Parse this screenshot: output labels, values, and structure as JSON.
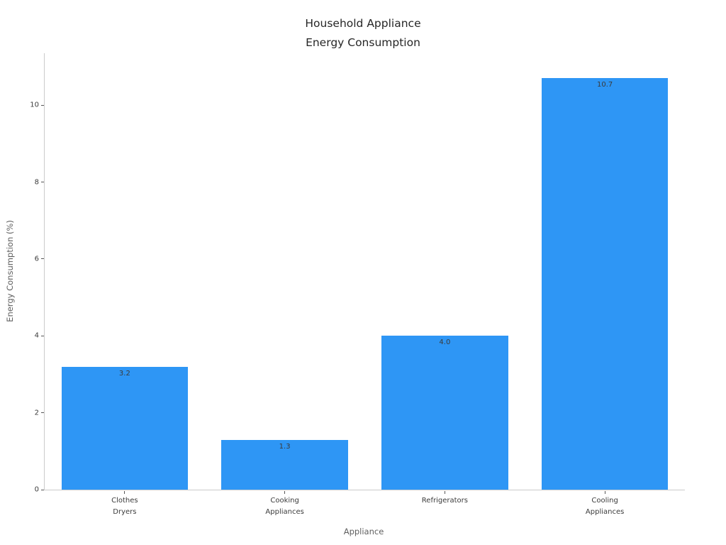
{
  "chart_data": {
    "type": "bar",
    "title": "Household Appliance\nEnergy Consumption",
    "xlabel": "Appliance",
    "ylabel": "Energy Consumption (%)",
    "categories": [
      "Clothes\nDryers",
      "Cooking\nAppliances",
      "Refrigerators",
      "Cooling\nAppliances"
    ],
    "values": [
      3.2,
      1.3,
      4.0,
      10.7
    ],
    "value_labels": [
      "3.2",
      "1.3",
      "4.0",
      "10.7"
    ],
    "yticks": [
      0,
      2,
      4,
      6,
      8,
      10
    ],
    "ylim": [
      0,
      11.35
    ],
    "grid": "off",
    "legend": "none",
    "bar_color": "#2e96f5",
    "axis_color": "#cbcbcb",
    "tick_label_color": "#3b3b3b",
    "axis_label_color": "#5f5f5f",
    "title_color": "#262626",
    "background_color": "#ffffff"
  }
}
